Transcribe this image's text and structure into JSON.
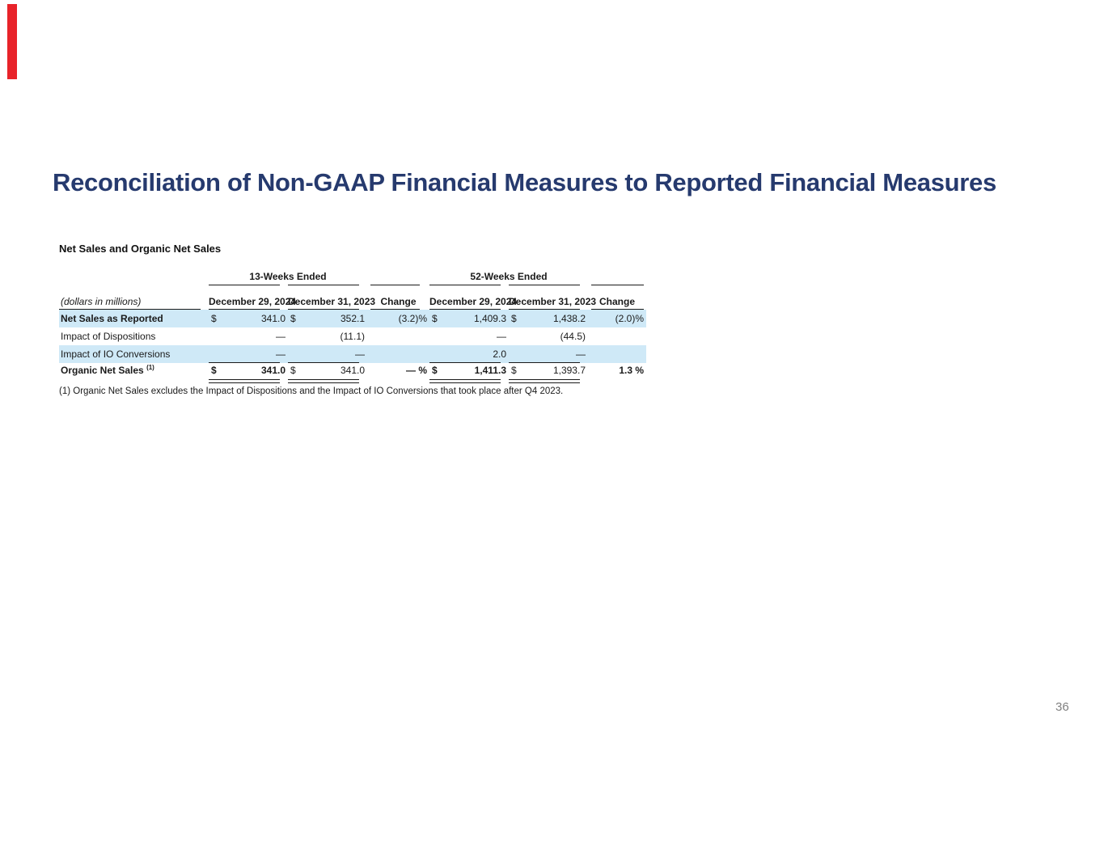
{
  "page": {
    "title": "Reconciliation of Non-GAAP Financial Measures to Reported Financial Measures",
    "page_number": "36"
  },
  "colors": {
    "accent_bar": "#e8232a",
    "title_navy": "#263a6e",
    "row_shade_blue": "#cfe9f7",
    "page_number_gray": "#808080"
  },
  "table": {
    "section_title": "Net Sales and Organic Net Sales",
    "unit_label": "(dollars in millions)",
    "group_headers": [
      "13-Weeks Ended",
      "52-Weeks Ended"
    ],
    "column_headers": [
      "December 29, 2024",
      "December 31, 2023",
      "Change",
      "December 29, 2024",
      "December 31, 2023",
      "Change"
    ],
    "rows": [
      {
        "label": "Net Sales as Reported",
        "cells": [
          {
            "currency": "$",
            "value": "341.0"
          },
          {
            "currency": "$",
            "value": "352.1"
          },
          {
            "value": "(3.2)%"
          },
          {
            "currency": "$",
            "value": "1,409.3"
          },
          {
            "currency": "$",
            "value": "1,438.2"
          },
          {
            "value": "(2.0)%"
          }
        ]
      },
      {
        "label": "Impact of Dispositions",
        "cells": [
          {
            "value": "—"
          },
          {
            "value": "(11.1)"
          },
          {
            "value": ""
          },
          {
            "value": "—"
          },
          {
            "value": "(44.5)"
          },
          {
            "value": ""
          }
        ]
      },
      {
        "label": "Impact of IO Conversions",
        "cells": [
          {
            "value": "—"
          },
          {
            "value": "—"
          },
          {
            "value": ""
          },
          {
            "value": "2.0"
          },
          {
            "value": "—"
          },
          {
            "value": ""
          }
        ]
      },
      {
        "label": "Organic Net Sales",
        "superscript": "(1)",
        "cells": [
          {
            "currency": "$",
            "value": "341.0"
          },
          {
            "currency": "$",
            "value": "341.0"
          },
          {
            "value": "— %"
          },
          {
            "currency": "$",
            "value": "1,411.3"
          },
          {
            "currency": "$",
            "value": "1,393.7"
          },
          {
            "value": "1.3 %"
          }
        ]
      }
    ],
    "footnote": "(1) Organic Net Sales excludes the Impact of Dispositions and the Impact of IO Conversions that took place after Q4 2023."
  }
}
